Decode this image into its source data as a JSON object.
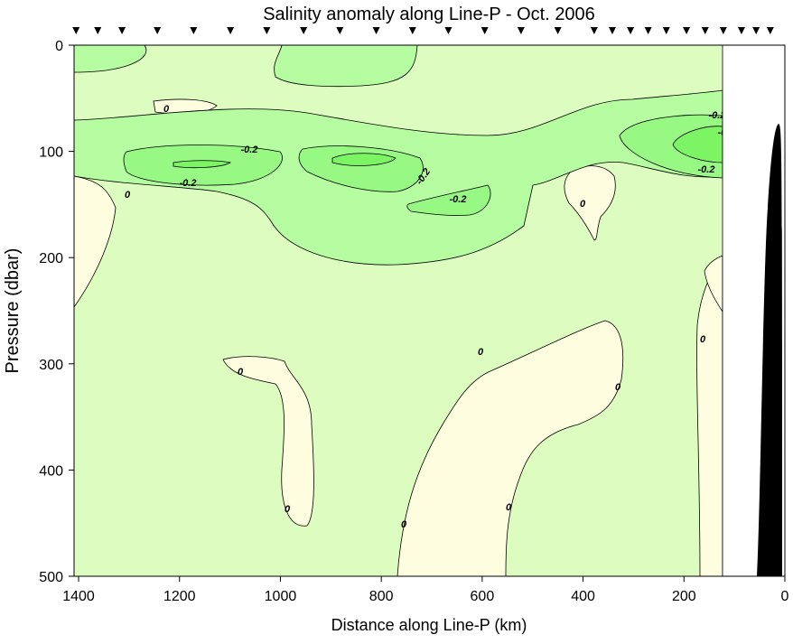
{
  "chart_data": {
    "type": "contour",
    "title": "Salinity anomaly along Line-P - Oct. 2006",
    "x_label": "Distance along Line-P (km)",
    "y_label": "Pressure (dbar)",
    "xlim": [
      1409,
      0
    ],
    "xticks": [
      1400,
      1200,
      1000,
      800,
      600,
      400,
      200,
      0
    ],
    "ylim": [
      500,
      0
    ],
    "yticks": [
      0,
      100,
      200,
      300,
      400,
      500
    ],
    "stations": [
      1405,
      1362,
      1314,
      1244,
      1172,
      1099,
      1027,
      954,
      882,
      810,
      738,
      667,
      595,
      523,
      450,
      378,
      342,
      306,
      271,
      235,
      195,
      158,
      122,
      86,
      57,
      29
    ],
    "contour_labels": [
      0,
      -0.2,
      -0.2,
      0,
      -0.2,
      -0.2,
      -0.2,
      -0.2,
      -0.2,
      0,
      0,
      0,
      0,
      0,
      0,
      0,
      0
    ],
    "colors": {
      "positive": "#fffde0",
      "zero": "#dcfcc0",
      "band": "#b6fca0",
      "low": "#98f884",
      "lowest": "#7cf464",
      "bathymetry": "#000000"
    }
  }
}
